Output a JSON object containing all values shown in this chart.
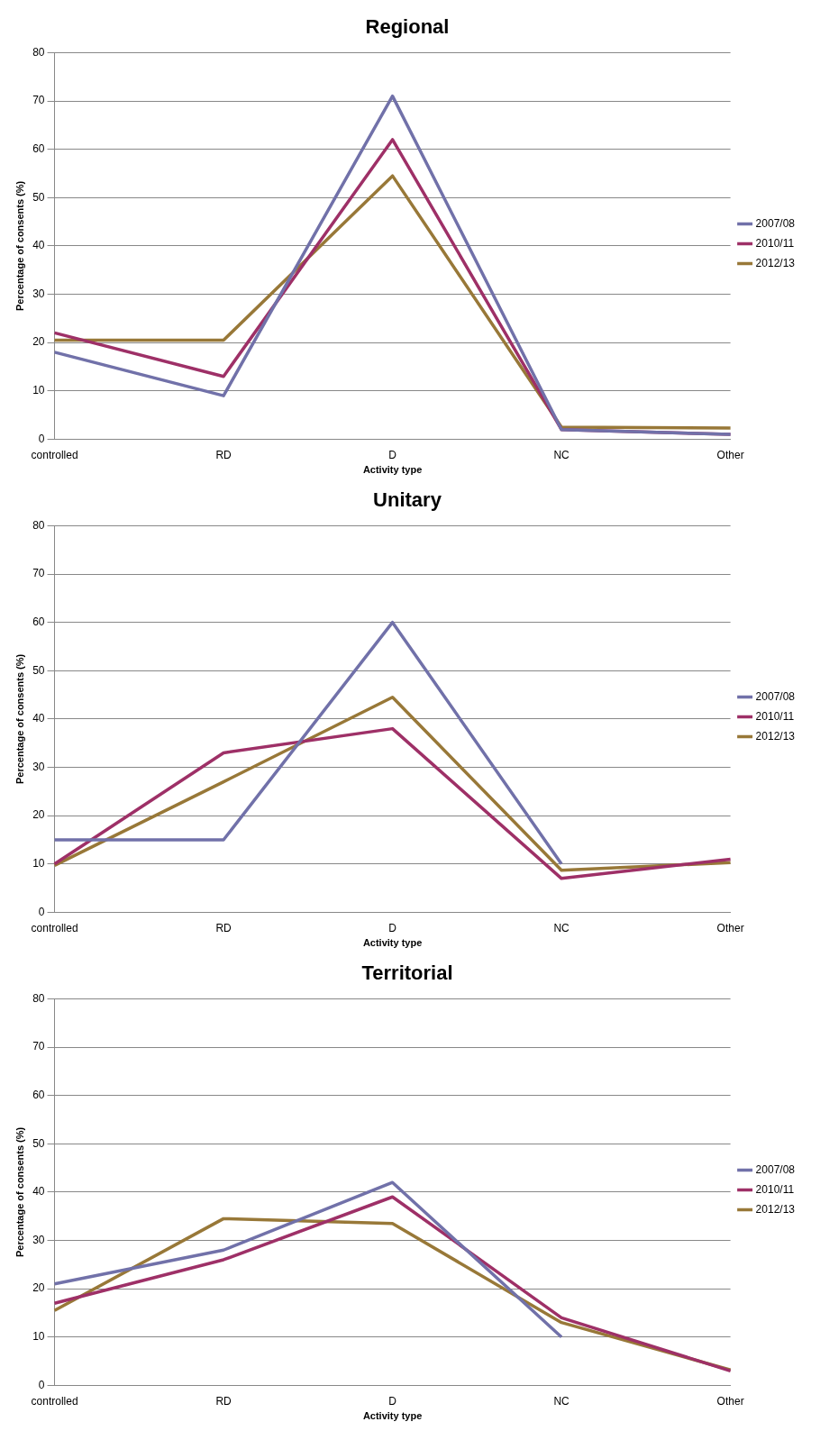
{
  "chart_data": [
    {
      "type": "line",
      "title": "Regional",
      "xlabel": "Activity type",
      "ylabel": "Percentage of consents (%)",
      "categories": [
        "controlled",
        "RD",
        "D",
        "NC",
        "Other"
      ],
      "ylim": [
        0,
        80
      ],
      "yticks": [
        0,
        10,
        20,
        30,
        40,
        50,
        60,
        70,
        80
      ],
      "grid": "y",
      "legend": "right",
      "marker": "none",
      "series": [
        {
          "name": "2007/08",
          "color": "#7171a9",
          "values": [
            18,
            9,
            71,
            2,
            1
          ]
        },
        {
          "name": "2010/11",
          "color": "#9e3067",
          "values": [
            22,
            13,
            62,
            2,
            1
          ]
        },
        {
          "name": "2012/13",
          "color": "#987838",
          "values": [
            20.5,
            20.5,
            54.5,
            2.5,
            2.3
          ]
        }
      ]
    },
    {
      "type": "line",
      "title": "Unitary",
      "xlabel": "Activity type",
      "ylabel": "Percentage of consents (%)",
      "categories": [
        "controlled",
        "RD",
        "D",
        "NC",
        "Other"
      ],
      "ylim": [
        0,
        80
      ],
      "yticks": [
        0,
        10,
        20,
        30,
        40,
        50,
        60,
        70,
        80
      ],
      "grid": "y",
      "legend": "right",
      "marker": "none",
      "series": [
        {
          "name": "2007/08",
          "color": "#7171a9",
          "values": [
            15,
            15,
            60,
            10,
            null
          ]
        },
        {
          "name": "2010/11",
          "color": "#9e3067",
          "values": [
            10,
            33,
            38,
            7,
            11
          ]
        },
        {
          "name": "2012/13",
          "color": "#987838",
          "values": [
            9.7,
            27,
            44.5,
            8.7,
            10.3
          ]
        }
      ]
    },
    {
      "type": "line",
      "title": "Territorial",
      "xlabel": "Activity type",
      "ylabel": "Percentage of consents (%)",
      "categories": [
        "controlled",
        "RD",
        "D",
        "NC",
        "Other"
      ],
      "ylim": [
        0,
        80
      ],
      "yticks": [
        0,
        10,
        20,
        30,
        40,
        50,
        60,
        70,
        80
      ],
      "grid": "y",
      "legend": "right",
      "marker": "none",
      "series": [
        {
          "name": "2007/08",
          "color": "#7171a9",
          "values": [
            21,
            28,
            42,
            10,
            null
          ]
        },
        {
          "name": "2010/11",
          "color": "#9e3067",
          "values": [
            17,
            26,
            39,
            14,
            3
          ]
        },
        {
          "name": "2012/13",
          "color": "#987838",
          "values": [
            15.5,
            34.5,
            33.5,
            13,
            3.2
          ]
        }
      ]
    }
  ]
}
